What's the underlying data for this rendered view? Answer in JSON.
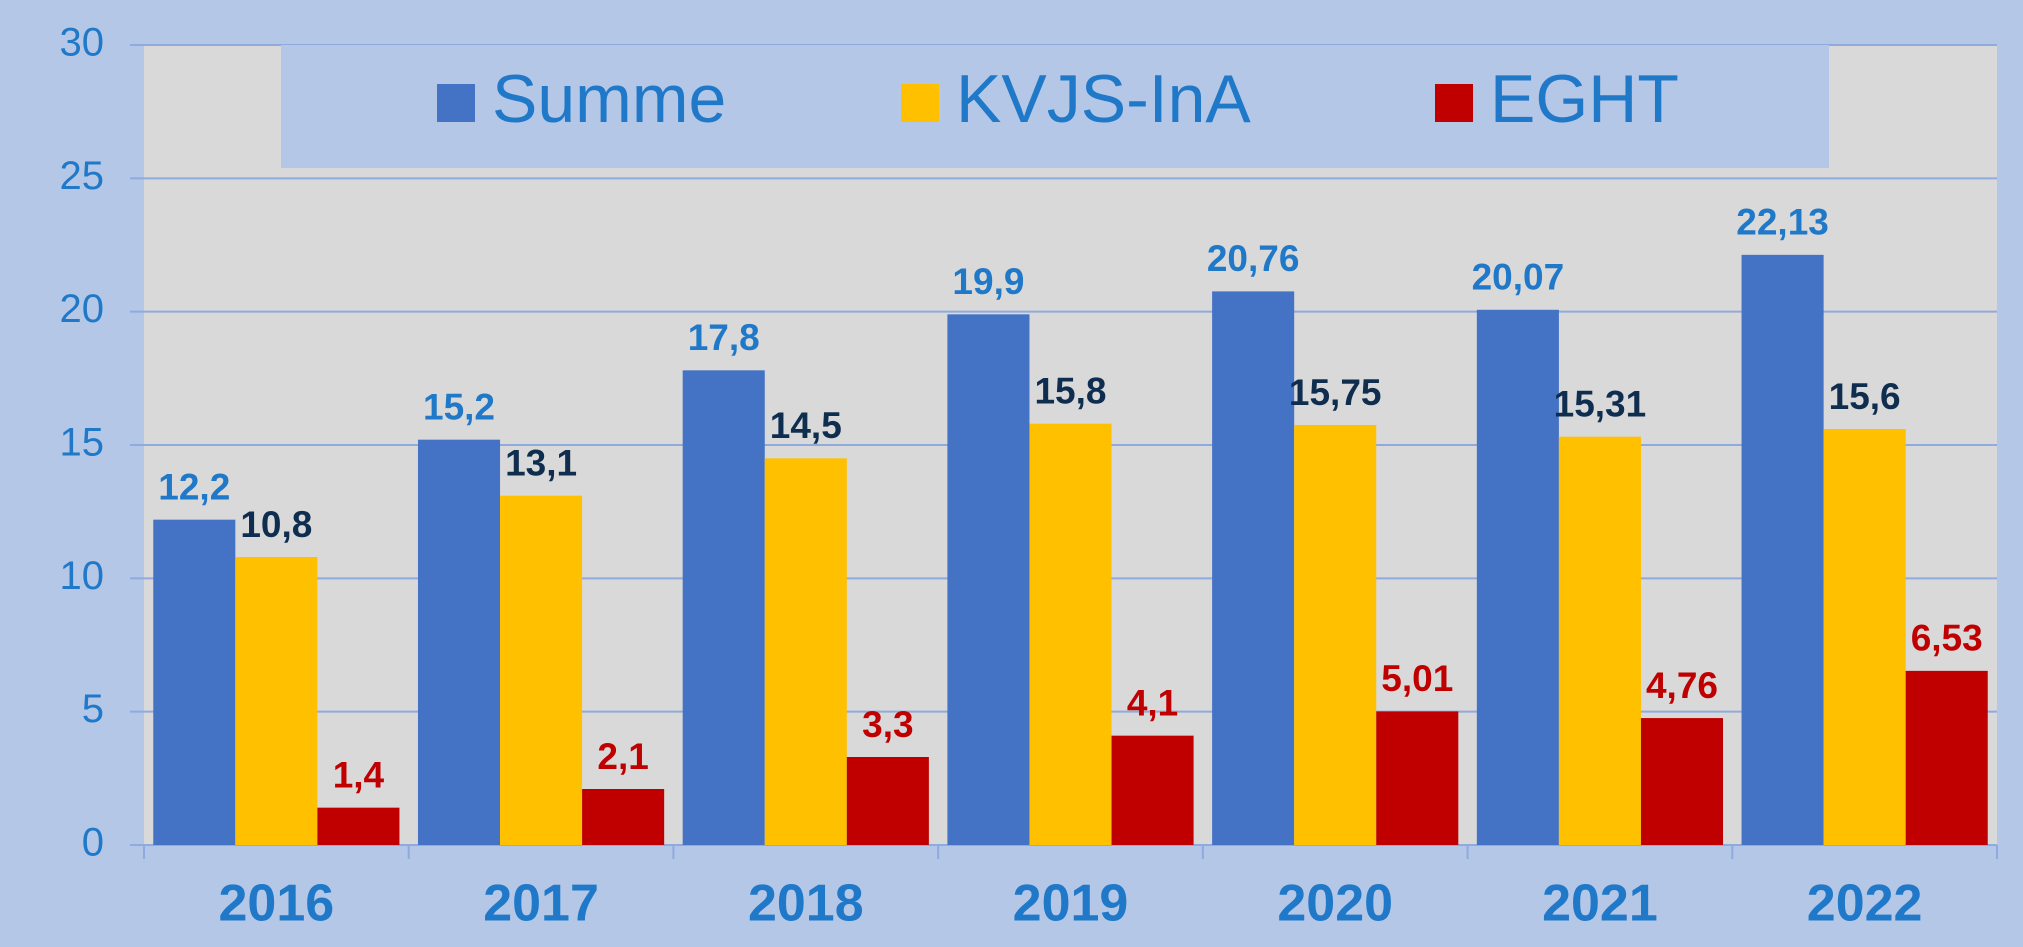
{
  "chart_data": {
    "type": "bar",
    "categories": [
      "2016",
      "2017",
      "2018",
      "2019",
      "2020",
      "2021",
      "2022"
    ],
    "series": [
      {
        "name": "Summe",
        "color": "#4472c4",
        "label_color": "#1f78c8",
        "values": [
          12.2,
          15.2,
          17.8,
          19.9,
          20.76,
          20.07,
          22.13
        ],
        "value_labels": [
          "12,2",
          "15,2",
          "17,8",
          "19,9",
          "20,76",
          "20,07",
          "22,13"
        ]
      },
      {
        "name": "KVJS-InA",
        "color": "#ffc000",
        "label_color": "#0f2e4f",
        "values": [
          10.8,
          13.1,
          14.5,
          15.8,
          15.75,
          15.31,
          15.6
        ],
        "value_labels": [
          "10,8",
          "13,1",
          "14,5",
          "15,8",
          "15,75",
          "15,31",
          "15,6"
        ]
      },
      {
        "name": "EGHT",
        "color": "#c00000",
        "label_color": "#c00000",
        "values": [
          1.4,
          2.1,
          3.3,
          4.1,
          5.01,
          4.76,
          6.53
        ],
        "value_labels": [
          "1,4",
          "2,1",
          "3,3",
          "4,1",
          "5,01",
          "4,76",
          "6,53"
        ]
      }
    ],
    "ylim": [
      0,
      30
    ],
    "yticks": [
      0,
      5,
      10,
      15,
      20,
      25,
      30
    ],
    "grid": true,
    "legend": "top"
  }
}
